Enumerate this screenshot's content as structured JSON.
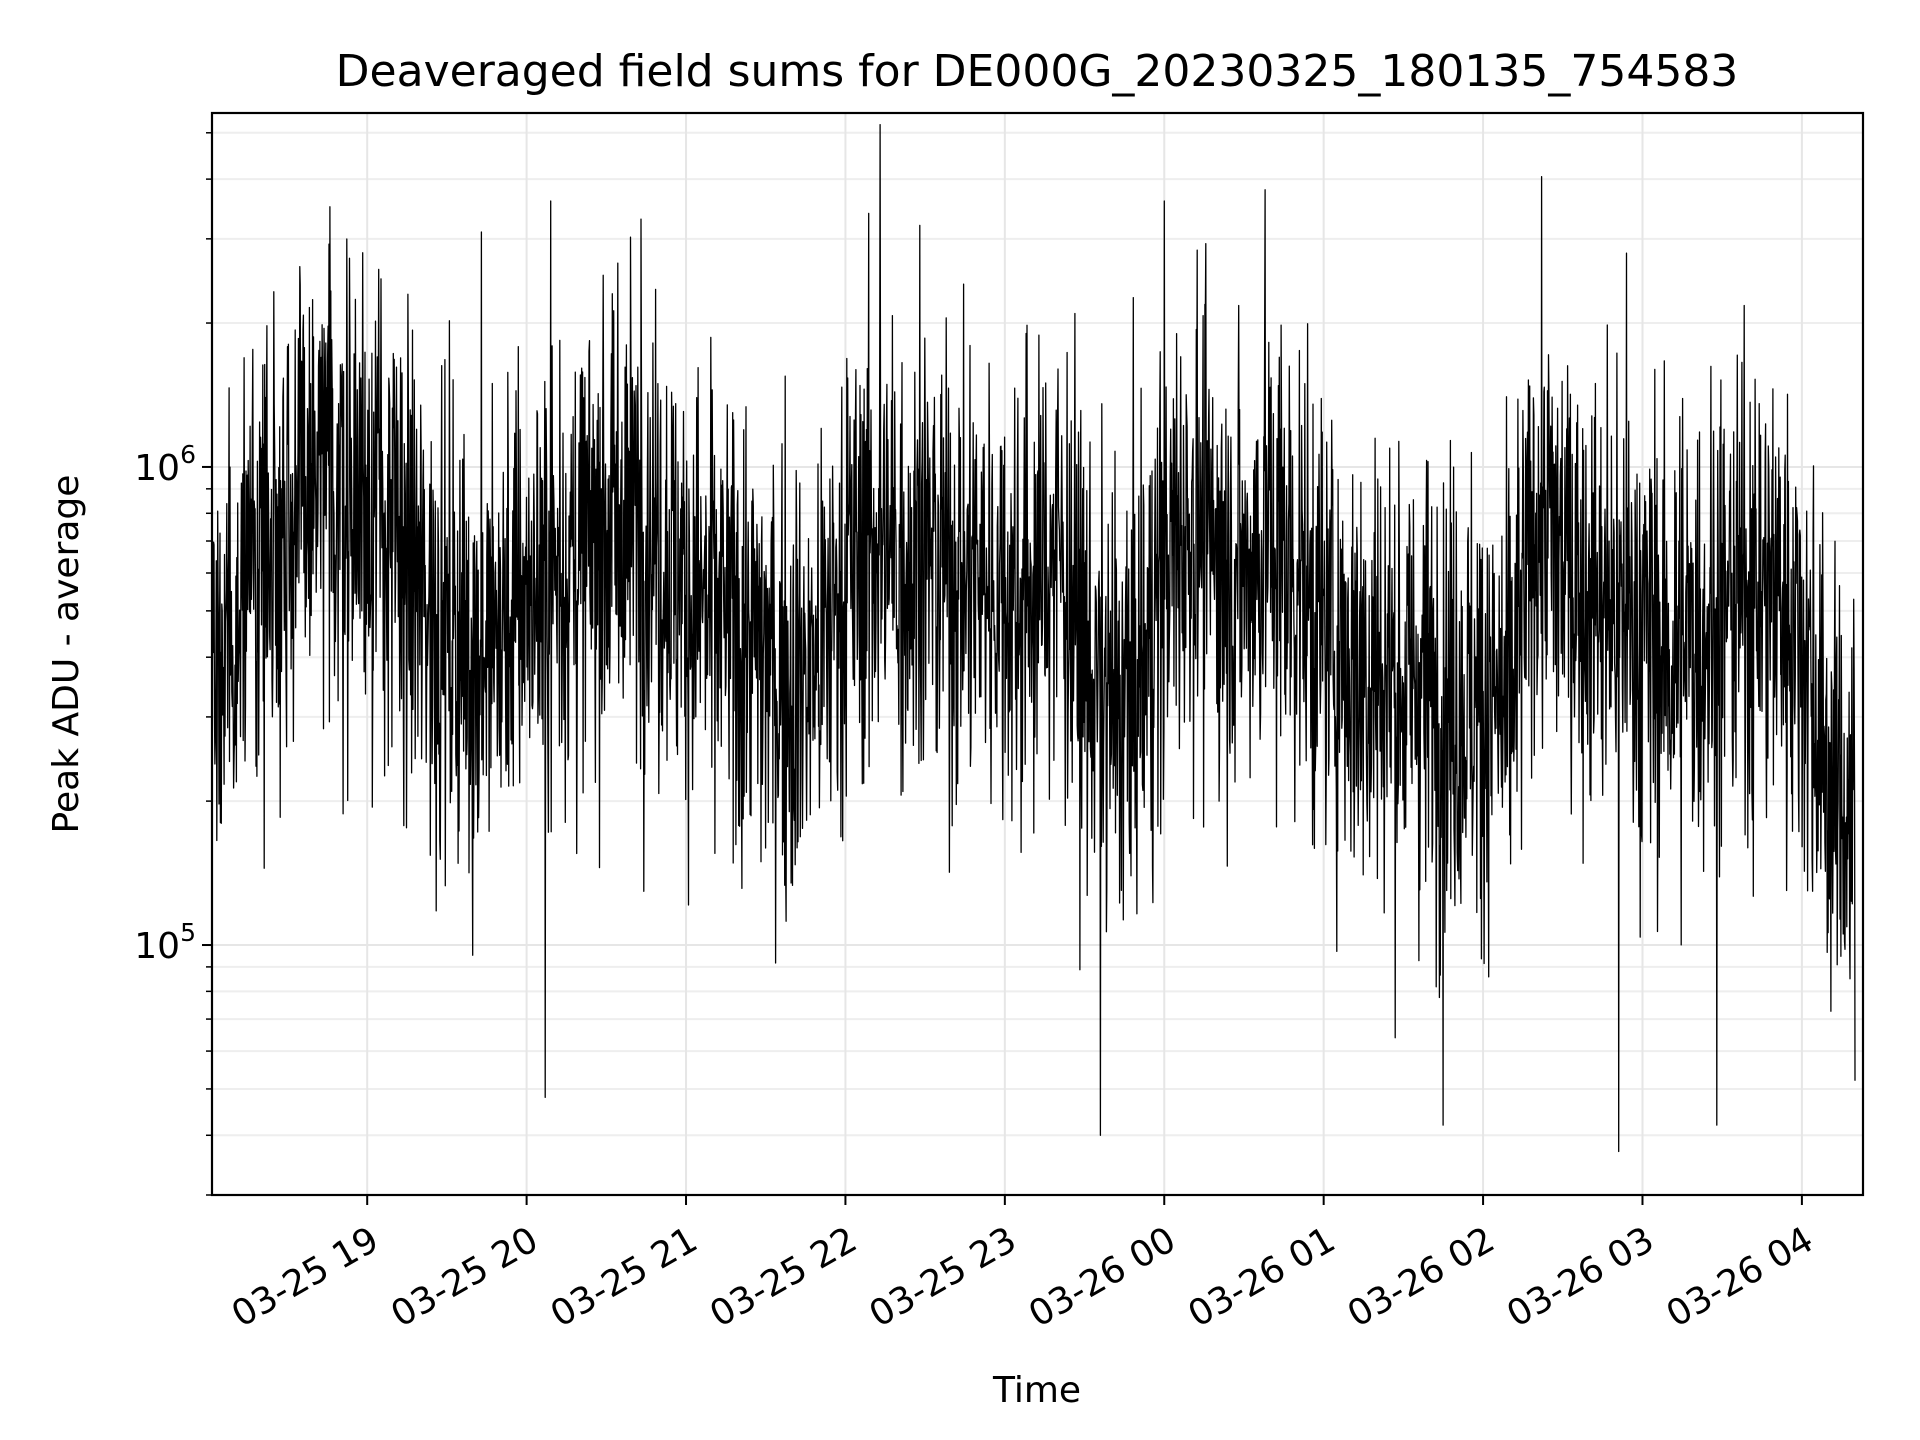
{
  "chart_data": {
    "type": "line",
    "title": "Deaveraged field sums for DE000G_20230325_180135_754583",
    "xlabel": "Time",
    "ylabel": "Peak ADU - average",
    "yscale": "log",
    "ylim": [
      30000,
      5500000
    ],
    "xlim": [
      "2023-03-25 18:01:35",
      "2023-03-26 04:23:00"
    ],
    "x_ticks": [
      {
        "value": "2023-03-25 19:00",
        "label": "03-25 19"
      },
      {
        "value": "2023-03-25 20:00",
        "label": "03-25 20"
      },
      {
        "value": "2023-03-25 21:00",
        "label": "03-25 21"
      },
      {
        "value": "2023-03-25 22:00",
        "label": "03-25 22"
      },
      {
        "value": "2023-03-25 23:00",
        "label": "03-25 23"
      },
      {
        "value": "2023-03-26 00:00",
        "label": "03-26 00"
      },
      {
        "value": "2023-03-26 01:00",
        "label": "03-26 01"
      },
      {
        "value": "2023-03-26 02:00",
        "label": "03-26 02"
      },
      {
        "value": "2023-03-26 03:00",
        "label": "03-26 03"
      },
      {
        "value": "2023-03-26 04:00",
        "label": "03-26 04"
      }
    ],
    "y_ticks": [
      {
        "value": 100000,
        "base": "10",
        "exp": "5"
      },
      {
        "value": 1000000,
        "base": "10",
        "exp": "6"
      }
    ],
    "grid": true,
    "line_color": "#000000",
    "series": [
      {
        "x": [
          "2023-03-25 18:02",
          "2023-03-25 18:10",
          "2023-03-25 18:20",
          "2023-03-25 18:30",
          "2023-03-25 18:40",
          "2023-03-25 18:50",
          "2023-03-25 19:00",
          "2023-03-25 19:10",
          "2023-03-25 19:20",
          "2023-03-25 19:30",
          "2023-03-25 19:40",
          "2023-03-25 19:50",
          "2023-03-25 20:00",
          "2023-03-25 20:10",
          "2023-03-25 20:20",
          "2023-03-25 20:30",
          "2023-03-25 20:40",
          "2023-03-25 20:50",
          "2023-03-25 21:00",
          "2023-03-25 21:10",
          "2023-03-25 21:20",
          "2023-03-25 21:30",
          "2023-03-25 21:40",
          "2023-03-25 21:50",
          "2023-03-25 22:00",
          "2023-03-25 22:10",
          "2023-03-25 22:20",
          "2023-03-25 22:30",
          "2023-03-25 22:40",
          "2023-03-25 22:50",
          "2023-03-25 23:00",
          "2023-03-25 23:10",
          "2023-03-25 23:20",
          "2023-03-25 23:30",
          "2023-03-25 23:40",
          "2023-03-25 23:50",
          "2023-03-26 00:00",
          "2023-03-26 00:10",
          "2023-03-26 00:20",
          "2023-03-26 00:30",
          "2023-03-26 00:40",
          "2023-03-26 00:50",
          "2023-03-26 01:00",
          "2023-03-26 01:10",
          "2023-03-26 01:20",
          "2023-03-26 01:30",
          "2023-03-26 01:40",
          "2023-03-26 01:50",
          "2023-03-26 02:00",
          "2023-03-26 02:10",
          "2023-03-26 02:20",
          "2023-03-26 02:30",
          "2023-03-26 02:40",
          "2023-03-26 02:50",
          "2023-03-26 03:00",
          "2023-03-26 03:10",
          "2023-03-26 03:20",
          "2023-03-26 03:30",
          "2023-03-26 03:40",
          "2023-03-26 03:50",
          "2023-03-26 04:00",
          "2023-03-26 04:10",
          "2023-03-26 04:20"
        ],
        "values": [
          300000,
          500000,
          700000,
          800000,
          900000,
          900000,
          900000,
          700000,
          550000,
          450000,
          400000,
          450000,
          550000,
          600000,
          650000,
          750000,
          800000,
          700000,
          550000,
          500000,
          450000,
          400000,
          350000,
          400000,
          600000,
          700000,
          650000,
          650000,
          600000,
          600000,
          550000,
          550000,
          700000,
          400000,
          300000,
          350000,
          600000,
          800000,
          650000,
          600000,
          700000,
          600000,
          450000,
          400000,
          380000,
          350000,
          350000,
          320000,
          320000,
          300000,
          800000,
          650000,
          550000,
          500000,
          450000,
          400000,
          450000,
          500000,
          550000,
          550000,
          450000,
          220000,
          180000
        ],
        "spikes_high": [
          {
            "x": "2023-03-25 18:46",
            "value": 3500000
          },
          {
            "x": "2023-03-25 19:43",
            "value": 3100000
          },
          {
            "x": "2023-03-25 20:09",
            "value": 3600000
          },
          {
            "x": "2023-03-25 20:43",
            "value": 3300000
          },
          {
            "x": "2023-03-25 22:13",
            "value": 5200000
          },
          {
            "x": "2023-03-25 22:28",
            "value": 3200000
          },
          {
            "x": "2023-03-26 00:00",
            "value": 3600000
          },
          {
            "x": "2023-03-26 00:38",
            "value": 3800000
          },
          {
            "x": "2023-03-26 02:54",
            "value": 2800000
          }
        ],
        "spikes_low": [
          {
            "x": "2023-03-25 20:07",
            "value": 48000
          },
          {
            "x": "2023-03-25 23:36",
            "value": 40000
          },
          {
            "x": "2023-03-26 01:45",
            "value": 42000
          },
          {
            "x": "2023-03-26 02:51",
            "value": 37000
          },
          {
            "x": "2023-03-26 03:28",
            "value": 42000
          },
          {
            "x": "2023-03-26 04:22",
            "value": 52000
          }
        ]
      }
    ]
  }
}
